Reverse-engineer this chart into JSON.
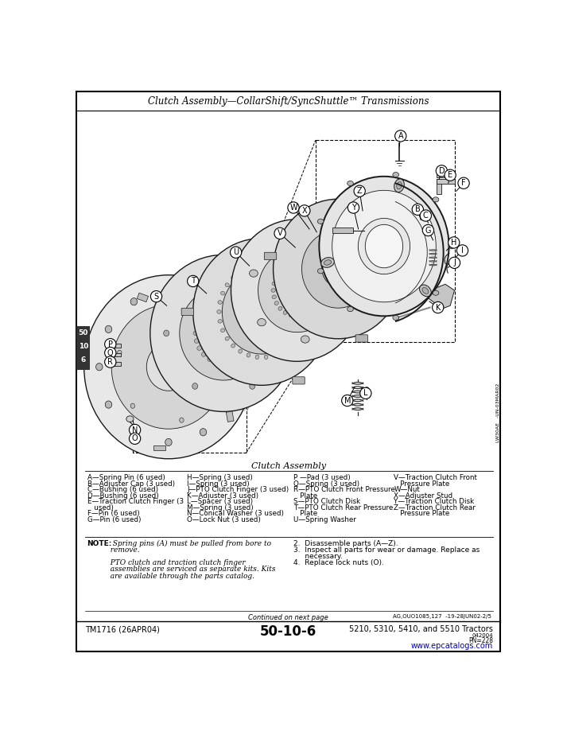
{
  "title": "Clutch Assembly—CollarShift/SyncShuttle™ Transmissions",
  "diagram_label": "Clutch Assembly",
  "bg_color": "#ffffff",
  "border_color": "#000000",
  "page_num": "50-10-6",
  "tm_num": "TM1716 (26APR04)",
  "tractors": "5210, 5310, 5410, and 5510 Tractors",
  "website": "www.epcatalogs.com",
  "pn": "PN=228",
  "continued": "Continued on next page",
  "ref_code": "AG,OUO1085,127  -19-28JUN02-2/5",
  "parts_col1": [
    "A—Spring Pin (6 used)",
    "B—Adjuster Cap (3 used)",
    "C—Bushing (6 used)",
    "D—Bushing (6 used)",
    "E—Traction Clutch Finger (3",
    "   used)",
    "F—Pin (6 used)",
    "G—Pin (6 used)"
  ],
  "parts_col2": [
    "H—Spring (3 used)",
    "I—Spring (3 used)",
    "J—PTO Clutch Finger (3 used)",
    "K—Adjuster (3 used)",
    "L—Spacer (3 used)",
    "M—Spring (3 used)",
    "N—Conical Washer (3 used)",
    "O—Lock Nut (3 used)"
  ],
  "parts_col3": [
    "P —Pad (3 used)",
    "Q—Spring (3 used)",
    "R—PTO Clutch Front Pressure",
    "   Plate",
    "S—PTO Clutch Disk",
    "T—PTO Clutch Rear Pressure",
    "   Plate",
    "U—Spring Washer"
  ],
  "parts_col4": [
    "V—Traction Clutch Front",
    "   Pressure Plate",
    "W—Nut",
    "X—Adjuster Stud",
    "Y—Traction Clutch Disk",
    "Z—Traction Clutch Rear",
    "   Pressure Plate"
  ],
  "note_italic1": "NOTE:  Spring pins (A) must be pulled from bore to",
  "note_italic2": "          remove.",
  "note_italic3": "",
  "note_italic4": "          PTO clutch and traction clutch finger",
  "note_italic5": "          assemblies are serviced as separate kits. Kits",
  "note_italic6": "          are available through the parts catalog.",
  "step2": "2.  Disassemble parts (A—Z).",
  "step3a": "3.  Inspect all parts for wear or damage. Replace as",
  "step3b": "     necessary.",
  "step4": "4.  Replace lock nuts (O).",
  "sidebar_text": "50\n10\n6",
  "side_label": "LW30AE   -UN-03MAR02"
}
